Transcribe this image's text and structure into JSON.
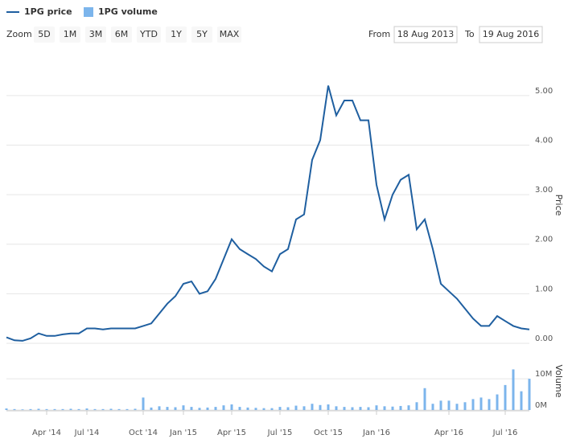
{
  "range_selector": {
    "label": "Zoom",
    "buttons": [
      "5D",
      "1M",
      "3M",
      "6M",
      "YTD",
      "1Y",
      "5Y",
      "MAX"
    ],
    "from_label": "From",
    "from": "18 Aug 2013",
    "to_label": "To",
    "to": "19 Aug 2016"
  },
  "chart_data": {
    "type": "line",
    "y_label": "Price",
    "y2_label": "Volume",
    "categories": [
      null,
      null,
      null,
      null,
      null,
      "Apr '14",
      null,
      null,
      null,
      null,
      "Jul '14",
      null,
      null,
      null,
      null,
      null,
      null,
      "Oct '14",
      null,
      null,
      null,
      null,
      "Jan '15",
      null,
      null,
      null,
      null,
      null,
      "Apr '15",
      null,
      null,
      null,
      null,
      null,
      "Jul '15",
      null,
      null,
      null,
      null,
      null,
      "Oct '15",
      null,
      null,
      null,
      null,
      null,
      "Jan '16",
      null,
      null,
      null,
      null,
      null,
      null,
      null,
      null,
      "Apr '16",
      null,
      null,
      null,
      null,
      null,
      null,
      "Jul '16",
      null,
      null,
      null
    ],
    "series": [
      {
        "name": "1PG price",
        "color": "#1f5fa0",
        "type": "line",
        "values": [
          0.12,
          0.06,
          0.05,
          0.1,
          0.2,
          0.15,
          0.15,
          0.18,
          0.2,
          0.2,
          0.3,
          0.3,
          0.28,
          0.3,
          0.3,
          0.3,
          0.3,
          0.35,
          0.4,
          0.6,
          0.8,
          0.95,
          1.2,
          1.25,
          1.0,
          1.05,
          1.3,
          1.7,
          2.1,
          1.9,
          1.8,
          1.7,
          1.55,
          1.45,
          1.8,
          1.9,
          2.5,
          2.6,
          3.7,
          4.1,
          5.2,
          4.6,
          4.9,
          4.9,
          4.5,
          4.5,
          3.2,
          2.5,
          3.0,
          3.3,
          3.4,
          2.3,
          2.5,
          1.9,
          1.2,
          1.05,
          0.9,
          0.7,
          0.5,
          0.35,
          0.35,
          0.55,
          0.45,
          0.35,
          0.3,
          0.28
        ]
      },
      {
        "name": "1PG volume",
        "color": "#7cb5ec",
        "type": "bar",
        "axis": "y2",
        "values": [
          500000,
          300000,
          200000,
          300000,
          400000,
          300000,
          300000,
          300000,
          400000,
          300000,
          500000,
          300000,
          300000,
          400000,
          300000,
          300000,
          400000,
          4000000,
          800000,
          1200000,
          1000000,
          900000,
          1500000,
          1000000,
          700000,
          800000,
          1000000,
          1500000,
          1800000,
          1000000,
          800000,
          700000,
          600000,
          600000,
          1000000,
          900000,
          1400000,
          1200000,
          2000000,
          1600000,
          1800000,
          1200000,
          1000000,
          900000,
          1000000,
          900000,
          1500000,
          1200000,
          1100000,
          1300000,
          1500000,
          2500000,
          7000000,
          2000000,
          3000000,
          3000000,
          2000000,
          2500000,
          3500000,
          4000000,
          3500000,
          5000000,
          8000000,
          13000000,
          6000000,
          10000000
        ]
      }
    ],
    "ylim": [
      0,
      5.5
    ],
    "yticks": [
      {
        "value": 0,
        "label": "0.00"
      },
      {
        "value": 1,
        "label": "1.00"
      },
      {
        "value": 2,
        "label": "2.00"
      },
      {
        "value": 3,
        "label": "3.00"
      },
      {
        "value": 4,
        "label": "4.00"
      },
      {
        "value": 5,
        "label": "5.00"
      }
    ],
    "y2lim": [
      0,
      18000000
    ],
    "y2ticks": [
      {
        "value": 0,
        "label": "0M"
      },
      {
        "value": 10000000,
        "label": "10M"
      }
    ],
    "grid": true
  }
}
